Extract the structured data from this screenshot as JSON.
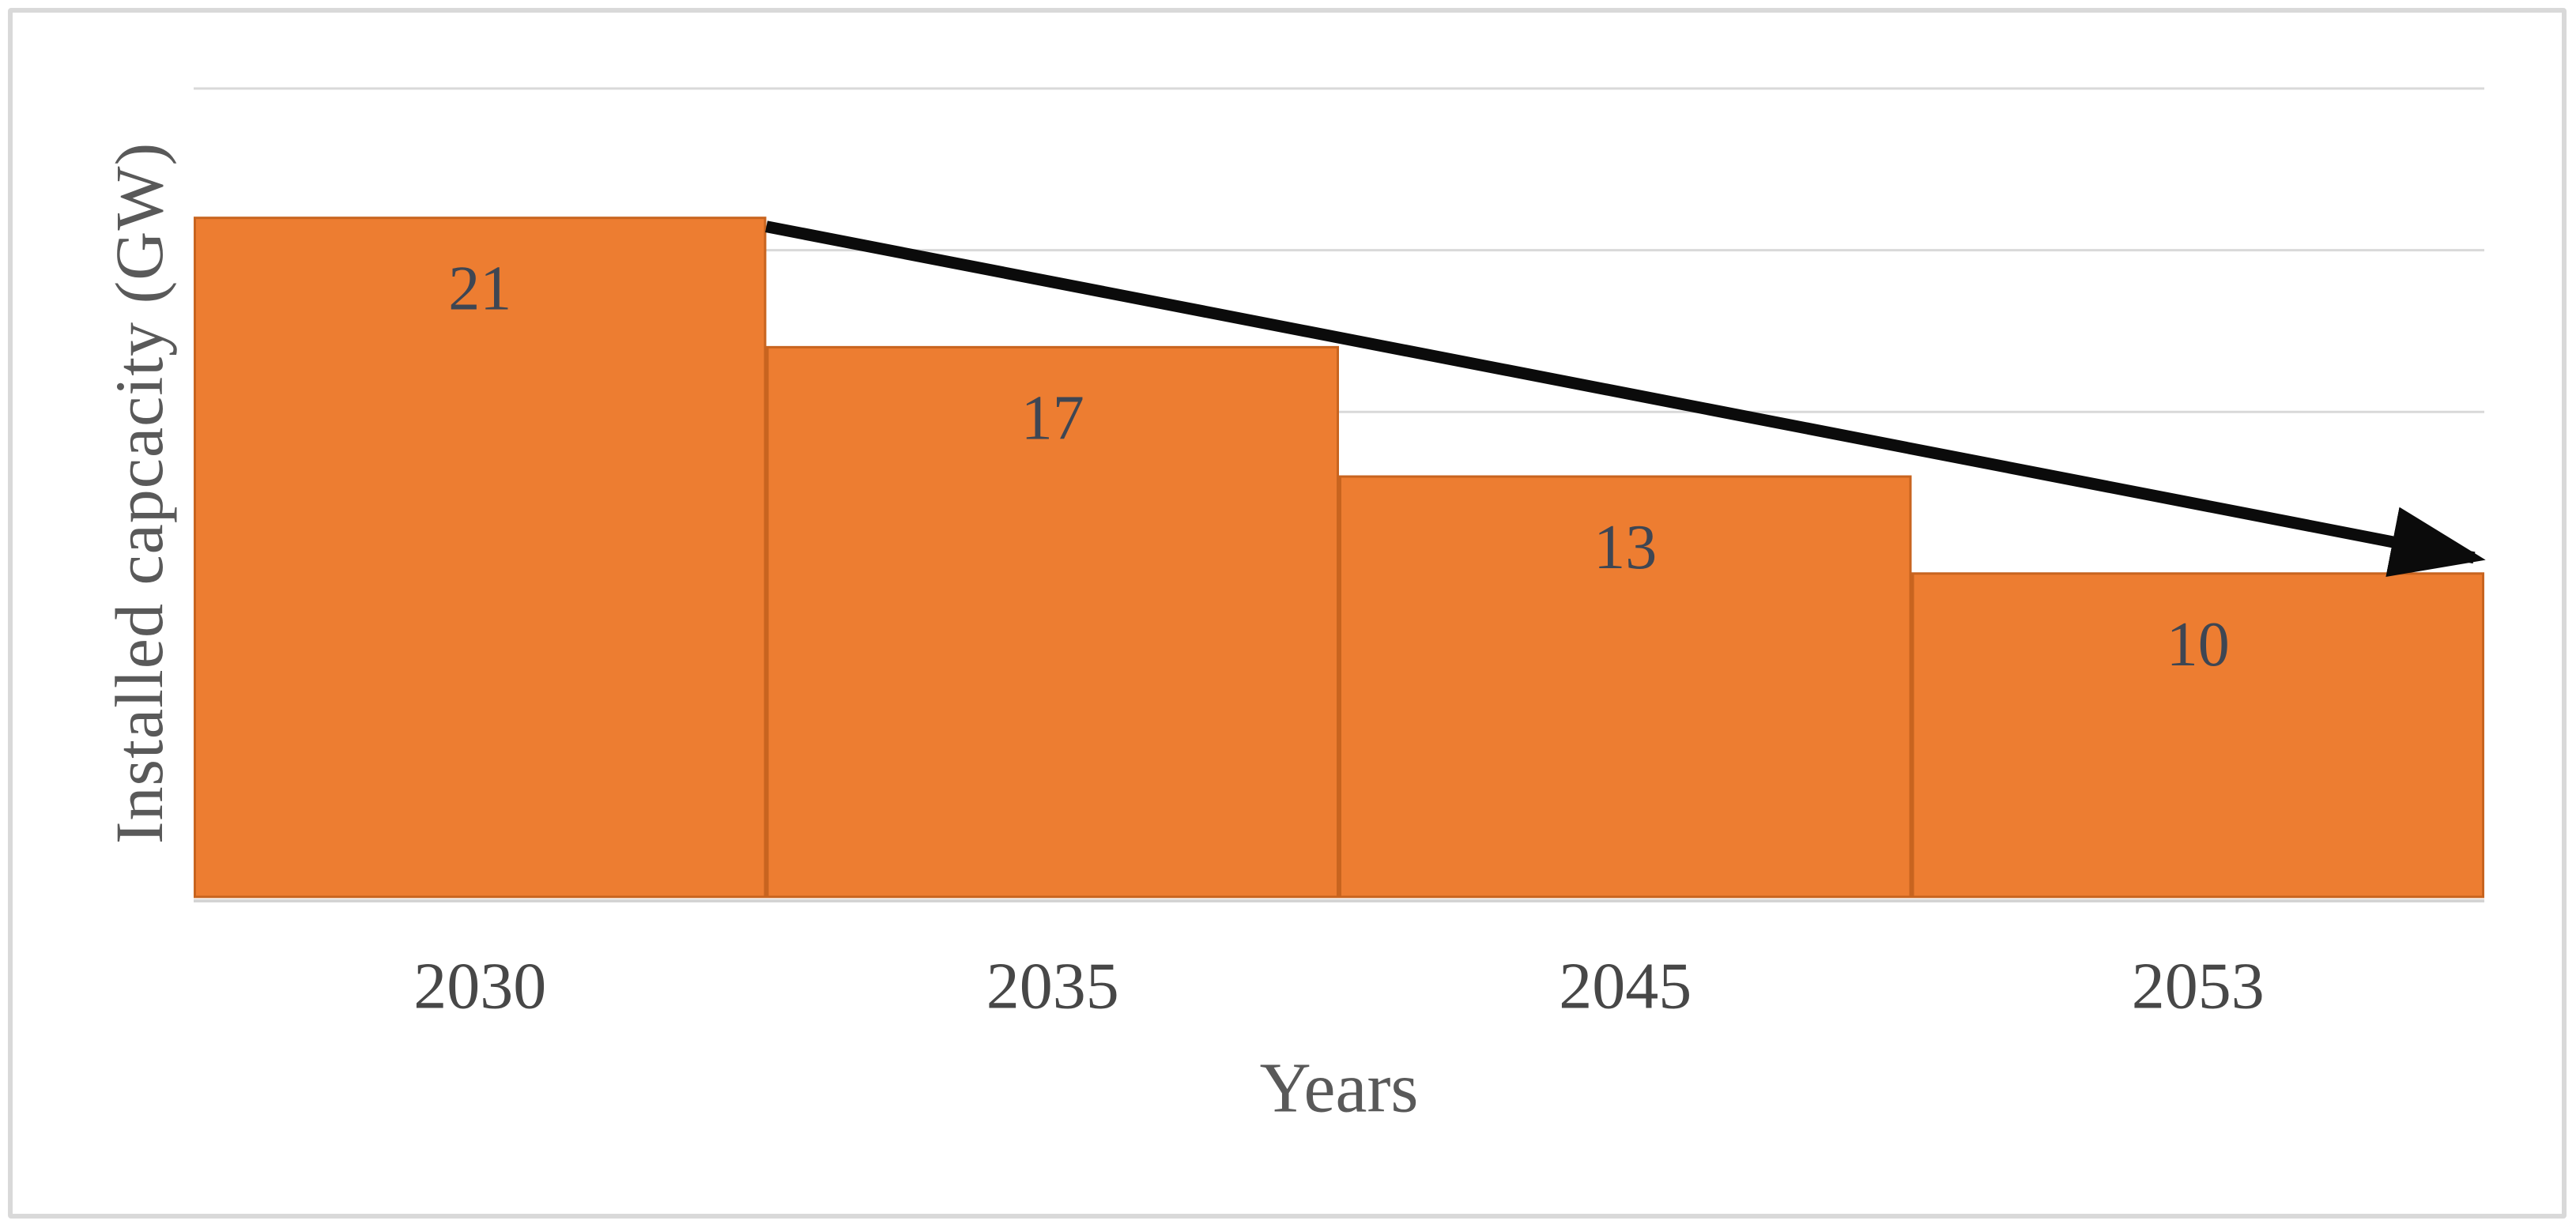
{
  "chart_data": {
    "type": "bar",
    "categories": [
      "2030",
      "2035",
      "2045",
      "2053"
    ],
    "values": [
      21,
      17,
      13,
      10
    ],
    "bar_labels": [
      "21",
      "17",
      "13",
      "10"
    ],
    "title": "",
    "xlabel": "Years",
    "ylabel": "Installed capcacity (GW)",
    "ylim": [
      0,
      25
    ],
    "gridline_step": 5,
    "grid": "horizontal-only",
    "legend": "none",
    "y_axis_ticks_visible": false,
    "bar_gap": "none",
    "annotation": {
      "type": "arrow",
      "from_category_index": 0,
      "to_category_index": 3,
      "description": "thick black straight arrow from top-right corner of first bar down to top-right corner of last bar indicating declining trend"
    },
    "colors": {
      "bar_fill": "#ED7D31",
      "bar_border": "#C8641F",
      "gridline": "#D9D9D9",
      "axis_line": "#D4D4D4",
      "value_label": "#3E4653",
      "tick_label": "#474747",
      "title_text": "#595959",
      "arrow": "#0B0B0B",
      "figure_border": "#D9D9D9",
      "background": "#FFFFFF"
    }
  }
}
